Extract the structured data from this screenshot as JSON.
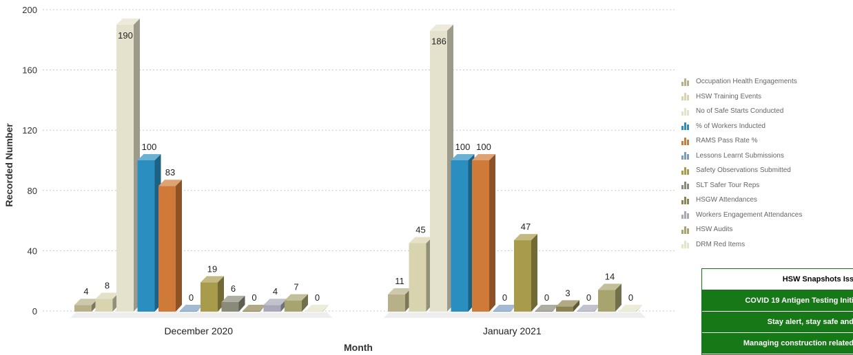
{
  "chart_data": {
    "type": "bar",
    "categories": [
      "December 2020",
      "January 2021"
    ],
    "xlabel": "Month",
    "ylabel": "Recorded Number",
    "ylim": [
      0,
      200
    ],
    "yticks": [
      0,
      40,
      80,
      120,
      160,
      200
    ],
    "grid": true,
    "legend_position": "right",
    "series": [
      {
        "name": "Occupation Health Engagements",
        "color": "#b8b088",
        "values": [
          4,
          11
        ]
      },
      {
        "name": "HSW Training Events",
        "color": "#d8d4b0",
        "values": [
          8,
          45
        ]
      },
      {
        "name": "No of Safe Starts Conducted",
        "color": "#e4e2cc",
        "values": [
          190,
          186
        ]
      },
      {
        "name": "% of Workers Inducted",
        "color": "#2a8fc0",
        "values": [
          100,
          100
        ]
      },
      {
        "name": "RAMS Pass Rate %",
        "color": "#d07a3a",
        "values": [
          83,
          100
        ]
      },
      {
        "name": "Lessons Learnt Submissions",
        "color": "#7a9cc0",
        "values": [
          0,
          0
        ]
      },
      {
        "name": "Safety Observations Submitted",
        "color": "#a89c4c",
        "values": [
          19,
          47
        ]
      },
      {
        "name": "SLT Safer Tour Reps",
        "color": "#8a8a78",
        "values": [
          6,
          0
        ]
      },
      {
        "name": "HSGW Attendances",
        "color": "#8c8450",
        "values": [
          0,
          3
        ]
      },
      {
        "name": "Workers Engagement Attendances",
        "color": "#a8a8b8",
        "values": [
          4,
          0
        ]
      },
      {
        "name": "HSW Audits",
        "color": "#a8a470",
        "values": [
          7,
          14
        ]
      },
      {
        "name": "DRM Red Items",
        "color": "#e4e4c8",
        "values": [
          0,
          0
        ]
      }
    ]
  },
  "snapshots": {
    "header": "HSW Snapshots Iss",
    "items": [
      "COVID 19 Antigen Testing Initi",
      "Stay alert, stay safe and",
      "Managing construction related"
    ]
  }
}
